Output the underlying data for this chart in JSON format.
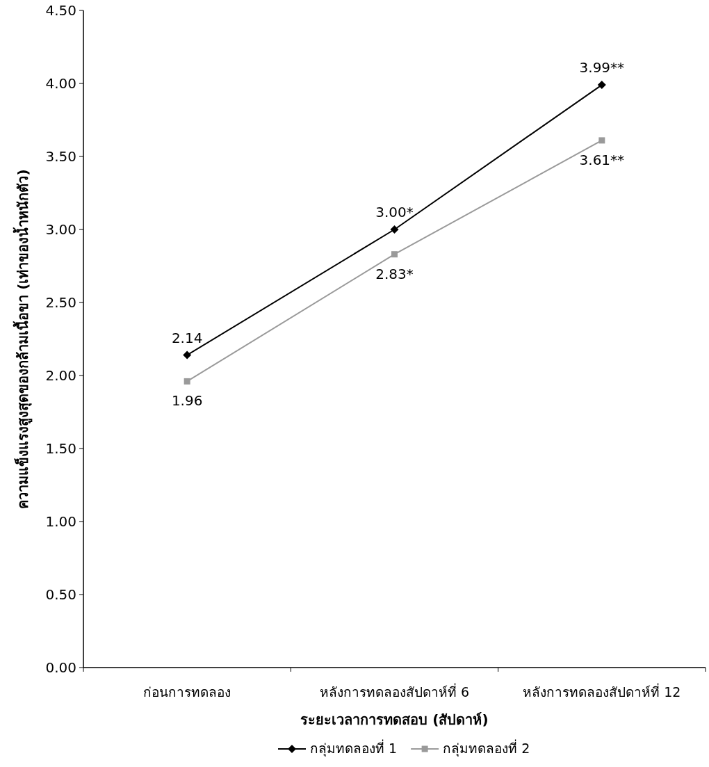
{
  "chart_data": {
    "type": "line",
    "xlabel": "ระยะเวลาการทดสอบ (สัปดาห์)",
    "ylabel": "ความแข็งแรงสูงสุดของกล้ามเนื้อขา  (เท่าของน้ำหนักตัว)",
    "categories": [
      "ก่อนการทดลอง",
      "หลังการทดลองสัปดาห์ที่ 6",
      "หลังการทดลองสัปดาห์ที่ 12"
    ],
    "ylim": [
      0,
      4.5
    ],
    "yticks": [
      {
        "value": 0,
        "label": "0.00"
      },
      {
        "value": 0.5,
        "label": "0.50"
      },
      {
        "value": 1,
        "label": "1.00"
      },
      {
        "value": 1.5,
        "label": "1.50"
      },
      {
        "value": 2,
        "label": "2.00"
      },
      {
        "value": 2.5,
        "label": "2.50"
      },
      {
        "value": 3,
        "label": "3.00"
      },
      {
        "value": 3.5,
        "label": "3.50"
      },
      {
        "value": 4,
        "label": "4.00"
      },
      {
        "value": 4.5,
        "label": "4.50"
      }
    ],
    "legend": "bottom",
    "series": [
      {
        "name": "กลุ่มทดลองที่ 1",
        "color": "#000000",
        "marker": "diamond",
        "values": [
          2.14,
          3.0,
          3.99
        ],
        "value_labels": [
          "2.14",
          "3.00*",
          "3.99**"
        ]
      },
      {
        "name": "กลุ่มทดลองที่ 2",
        "color": "#9a9a9a",
        "marker": "square",
        "values": [
          1.96,
          2.83,
          3.61
        ],
        "value_labels": [
          "1.96",
          "2.83*",
          "3.61**"
        ]
      }
    ]
  }
}
